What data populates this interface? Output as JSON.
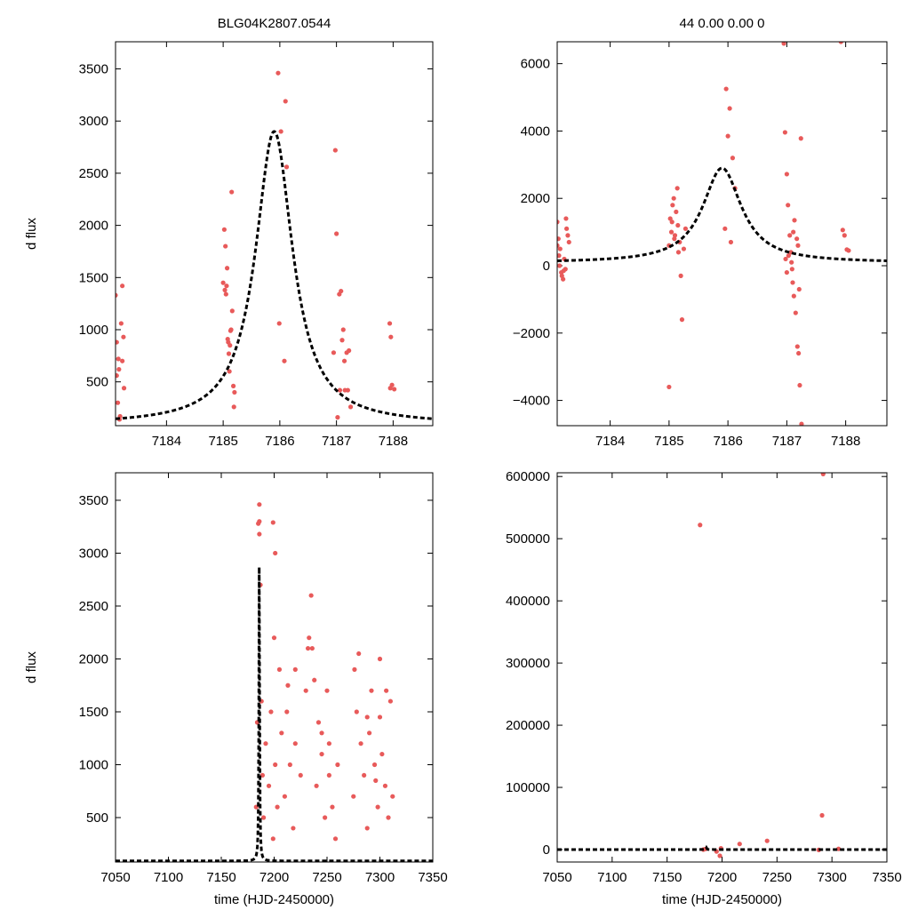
{
  "chart_data": [
    {
      "id": "top-left",
      "type": "scatter",
      "title": "BLG04K2807.0544",
      "xlabel": "",
      "ylabel": "d flux",
      "xlim": [
        7183.1,
        7188.7
      ],
      "ylim": [
        80,
        3760
      ],
      "xticks": [
        7184,
        7185,
        7186,
        7187,
        7188
      ],
      "yticks": [
        500,
        1000,
        1500,
        2000,
        2500,
        3000,
        3500
      ],
      "series": [
        {
          "name": "observations",
          "color": "#e85a5a",
          "x": [
            7183.1,
            7183.12,
            7183.15,
            7183.17,
            7183.18,
            7183.2,
            7183.22,
            7183.22,
            7183.25,
            7183.12,
            7183.14,
            7183.16,
            7183.24,
            7185.0,
            7185.02,
            7185.04,
            7185.06,
            7185.08,
            7185.1,
            7185.12,
            7185.15,
            7185.05,
            7185.07,
            7185.13,
            7185.14,
            7185.2,
            7185.18,
            7185.03,
            7185.09,
            7185.11,
            7185.19,
            7185.16,
            7185.97,
            7186.02,
            7186.1,
            7186.12,
            7185.99,
            7186.08,
            7186.95,
            7186.98,
            7187.0,
            7187.05,
            7187.08,
            7187.1,
            7187.12,
            7187.15,
            7187.18,
            7187.22,
            7187.25,
            7187.06,
            7187.02,
            7187.14,
            7187.2,
            7187.94,
            7187.96,
            7187.98,
            7188.02,
            7187.95
          ],
          "y": [
            1330,
            880,
            720,
            140,
            170,
            1060,
            700,
            1420,
            440,
            560,
            300,
            620,
            930,
            1450,
            1960,
            1800,
            1420,
            910,
            770,
            850,
            2320,
            1340,
            1590,
            990,
            1000,
            400,
            460,
            1380,
            880,
            600,
            260,
            1180,
            3460,
            2900,
            3190,
            2560,
            1060,
            700,
            780,
            2720,
            1920,
            1340,
            1370,
            900,
            1000,
            420,
            780,
            800,
            260,
            420,
            160,
            700,
            420,
            1060,
            930,
            470,
            430,
            440
          ]
        },
        {
          "name": "model",
          "color": "#000000",
          "style": "dashed",
          "model": {
            "t0": 7185.9,
            "amp": 2810,
            "width": 0.4,
            "base": 90
          }
        }
      ]
    },
    {
      "id": "top-right",
      "type": "scatter",
      "title": "44  0.00  0.00  0",
      "xlabel": "",
      "ylabel": "",
      "xlim": [
        7183.1,
        7188.7
      ],
      "ylim": [
        -4750,
        6650
      ],
      "xticks": [
        7184,
        7185,
        7186,
        7187,
        7188
      ],
      "yticks": [
        -4000,
        -2000,
        0,
        2000,
        4000,
        6000
      ],
      "series": [
        {
          "name": "observations",
          "color": "#e85a5a",
          "x": [
            7183.1,
            7183.12,
            7183.15,
            7183.17,
            7183.2,
            7183.22,
            7183.25,
            7183.28,
            7183.1,
            7183.14,
            7183.18,
            7183.24,
            7183.26,
            7183.3,
            7183.13,
            7183.21,
            7185.0,
            7185.02,
            7185.04,
            7185.06,
            7185.08,
            7185.1,
            7185.12,
            7185.15,
            7185.18,
            7185.2,
            7185.05,
            7185.14,
            7185.22,
            7185.25,
            7185.0,
            7185.28,
            7185.09,
            7185.16,
            7185.97,
            7186.0,
            7186.03,
            7186.08,
            7186.12,
            7185.95,
            7186.05,
            7186.95,
            7186.97,
            7187.0,
            7187.02,
            7187.05,
            7187.08,
            7187.1,
            7187.12,
            7187.15,
            7187.18,
            7187.2,
            7187.22,
            7187.25,
            7187.0,
            7187.07,
            7187.13,
            7187.17,
            7187.21,
            7187.03,
            7187.09,
            7187.19,
            7187.24,
            7187.11,
            7186.98,
            7187.95,
            7187.98,
            7188.02,
            7188.05,
            7187.92
          ],
          "y": [
            1300,
            800,
            500,
            -200,
            -400,
            200,
            1400,
            900,
            600,
            0,
            -300,
            -100,
            1100,
            700,
            300,
            -150,
            -3600,
            1400,
            1000,
            1800,
            2000,
            900,
            1600,
            1200,
            700,
            -300,
            1300,
            2300,
            -1600,
            500,
            600,
            1100,
            800,
            400,
            5250,
            3850,
            4670,
            3200,
            2300,
            1100,
            700,
            6600,
            3960,
            2720,
            1800,
            900,
            100,
            -500,
            -900,
            -1400,
            -2400,
            -2600,
            -3550,
            -4700,
            -200,
            400,
            1350,
            800,
            -700,
            300,
            -100,
            600,
            3780,
            1000,
            200,
            1060,
            900,
            480,
            450,
            6650
          ]
        },
        {
          "name": "model",
          "color": "#000000",
          "style": "dashed",
          "model": {
            "t0": 7185.9,
            "amp": 2810,
            "width": 0.4,
            "base": 90
          }
        }
      ]
    },
    {
      "id": "bottom-left",
      "type": "scatter",
      "title": "",
      "xlabel": "time (HJD-2450000)",
      "ylabel": "d flux",
      "xlim": [
        7050,
        7350
      ],
      "ylim": [
        80,
        3760
      ],
      "xticks": [
        7050,
        7100,
        7150,
        7200,
        7250,
        7300,
        7350
      ],
      "yticks": [
        500,
        1000,
        1500,
        2000,
        2500,
        3000,
        3500
      ],
      "series": [
        {
          "name": "observations",
          "color": "#e85a5a",
          "x": [
            7183,
            7184,
            7185,
            7186,
            7186,
            7187,
            7188,
            7189,
            7190,
            7192,
            7195,
            7197,
            7199,
            7200,
            7201,
            7203,
            7205,
            7207,
            7210,
            7212,
            7215,
            7218,
            7220,
            7225,
            7230,
            7232,
            7235,
            7238,
            7240,
            7242,
            7245,
            7248,
            7250,
            7252,
            7255,
            7258,
            7275,
            7278,
            7280,
            7282,
            7285,
            7288,
            7290,
            7292,
            7295,
            7298,
            7300,
            7302,
            7305,
            7308,
            7310,
            7312,
            7186,
            7199,
            7201,
            7233,
            7236,
            7276,
            7300,
            7306,
            7288,
            7260,
            7220,
            7213,
            7245,
            7252,
            7296
          ],
          "y": [
            600,
            1400,
            3280,
            3460,
            3180,
            2700,
            1600,
            900,
            500,
            1200,
            800,
            1500,
            300,
            2200,
            1000,
            600,
            1900,
            1300,
            700,
            1500,
            1000,
            400,
            1200,
            900,
            1700,
            2100,
            2600,
            1800,
            800,
            1400,
            1100,
            500,
            1700,
            900,
            600,
            300,
            700,
            1500,
            2050,
            1200,
            900,
            400,
            1300,
            1700,
            1000,
            600,
            2000,
            1100,
            800,
            500,
            1600,
            700,
            3300,
            3290,
            3000,
            2200,
            2100,
            1900,
            1450,
            1700,
            1450,
            1000,
            1900,
            1750,
            1300,
            1200,
            850
          ]
        },
        {
          "name": "model",
          "color": "#000000",
          "style": "dashed",
          "model": {
            "t0": 7185.9,
            "amp": 2810,
            "width": 0.4,
            "base": 90
          }
        }
      ]
    },
    {
      "id": "bottom-right",
      "type": "scatter",
      "title": "",
      "xlabel": "time (HJD-2450000)",
      "ylabel": "",
      "xlim": [
        7050,
        7350
      ],
      "ylim": [
        -20000,
        606000
      ],
      "xticks": [
        7050,
        7100,
        7150,
        7200,
        7250,
        7300,
        7350
      ],
      "yticks": [
        0,
        100000,
        200000,
        300000,
        400000,
        500000,
        600000
      ],
      "series": [
        {
          "name": "observations",
          "color": "#e85a5a",
          "x": [
            7180,
            7292,
            7291,
            7183,
            7185,
            7198,
            7216,
            7241,
            7306,
            7195,
            7199,
            7288
          ],
          "y": [
            522000,
            604000,
            55000,
            0,
            1000,
            -10000,
            9000,
            14000,
            1200,
            -3000,
            2000,
            -500
          ]
        },
        {
          "name": "model",
          "color": "#000000",
          "style": "dashed",
          "model": {
            "t0": 7185.9,
            "amp": 2810,
            "width": 0.4,
            "base": 90
          }
        }
      ]
    }
  ]
}
